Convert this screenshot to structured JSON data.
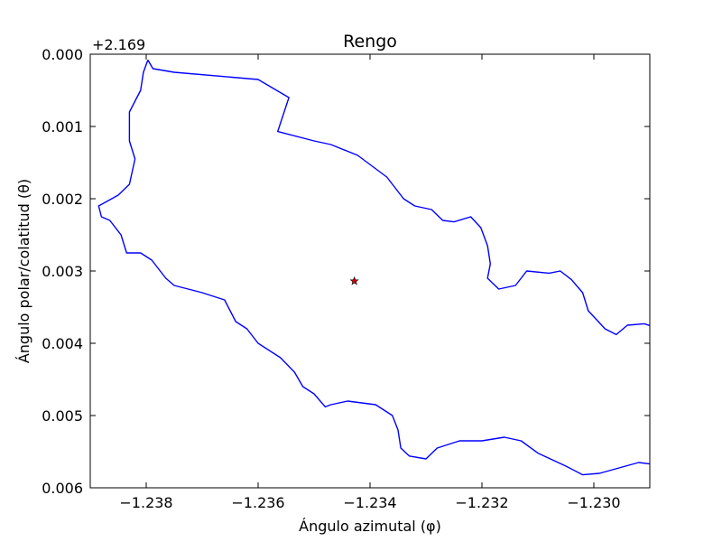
{
  "chart_data": {
    "type": "line",
    "title": "Rengo",
    "xlabel": "Ángulo azimutal (φ)",
    "ylabel": "Ángulo polar/colatitud (θ)",
    "y_offset_label": "+2.169",
    "xlim": [
      -1.239,
      -1.229
    ],
    "ylim": [
      0.006,
      0.0
    ],
    "y_axis_inverted": true,
    "grid": false,
    "x_ticks": [
      -1.238,
      -1.236,
      -1.234,
      -1.232,
      -1.23
    ],
    "x_tick_labels": [
      "−1.238",
      "−1.236",
      "−1.234",
      "−1.232",
      "−1.230"
    ],
    "y_ticks": [
      0.0,
      0.001,
      0.002,
      0.003,
      0.004,
      0.005,
      0.006
    ],
    "y_tick_labels": [
      "0.000",
      "0.001",
      "0.002",
      "0.003",
      "0.004",
      "0.005",
      "0.006"
    ],
    "series": [
      {
        "kind": "boundary",
        "color": "#0000ff",
        "points": [
          [
            -1.23797,
            8e-05
          ],
          [
            -1.23788,
            0.0002
          ],
          [
            -1.2375,
            0.00025
          ],
          [
            -1.236,
            0.00035
          ],
          [
            -1.23545,
            0.0006
          ],
          [
            -1.23565,
            0.00107
          ],
          [
            -1.235,
            0.0012
          ],
          [
            -1.2347,
            0.00125
          ],
          [
            -1.23422,
            0.0014
          ],
          [
            -1.2337,
            0.0017
          ],
          [
            -1.2334,
            0.002
          ],
          [
            -1.2332,
            0.0021
          ],
          [
            -1.2329,
            0.00215
          ],
          [
            -1.2327,
            0.0023
          ],
          [
            -1.2325,
            0.00232
          ],
          [
            -1.2322,
            0.00225
          ],
          [
            -1.23202,
            0.0024
          ],
          [
            -1.2319,
            0.00265
          ],
          [
            -1.23185,
            0.0029
          ],
          [
            -1.2319,
            0.0031
          ],
          [
            -1.2317,
            0.00325
          ],
          [
            -1.2314,
            0.0032
          ],
          [
            -1.2312,
            0.003
          ],
          [
            -1.2308,
            0.00303
          ],
          [
            -1.2306,
            0.003
          ],
          [
            -1.2304,
            0.00312
          ],
          [
            -1.2302,
            0.0033
          ],
          [
            -1.2301,
            0.00355
          ],
          [
            -1.2298,
            0.0038
          ],
          [
            -1.2296,
            0.00388
          ],
          [
            -1.2294,
            0.00375
          ],
          [
            -1.2291,
            0.00373
          ],
          [
            -1.2289,
            0.00378
          ],
          [
            -1.2288,
            0.0038
          ],
          [
            -1.2286,
            0.0038
          ],
          [
            -1.2285,
            0.00395
          ],
          [
            -1.2286,
            0.0043
          ],
          [
            -1.2286,
            0.0047
          ],
          [
            -1.2285,
            0.0051
          ],
          [
            -1.2283,
            0.00512
          ],
          [
            -1.2283,
            0.0055
          ],
          [
            -1.2284,
            0.0057
          ],
          [
            -1.2288,
            0.0058
          ],
          [
            -1.2289,
            0.00568
          ],
          [
            -1.2292,
            0.00565
          ],
          [
            -1.2299,
            0.0058
          ],
          [
            -1.2302,
            0.00582
          ],
          [
            -1.2305,
            0.0057
          ],
          [
            -1.231,
            0.00552
          ],
          [
            -1.2313,
            0.00535
          ],
          [
            -1.2316,
            0.0053
          ],
          [
            -1.232,
            0.00535
          ],
          [
            -1.2324,
            0.00535
          ],
          [
            -1.2328,
            0.00545
          ],
          [
            -1.233,
            0.0056
          ],
          [
            -1.2333,
            0.00556
          ],
          [
            -1.23345,
            0.00545
          ],
          [
            -1.2335,
            0.0052
          ],
          [
            -1.2336,
            0.005
          ],
          [
            -1.2339,
            0.00485
          ],
          [
            -1.2344,
            0.0048
          ],
          [
            -1.2347,
            0.00485
          ],
          [
            -1.2348,
            0.00488
          ],
          [
            -1.235,
            0.0047
          ],
          [
            -1.2352,
            0.0046
          ],
          [
            -1.23535,
            0.0044
          ],
          [
            -1.2356,
            0.0042
          ],
          [
            -1.236,
            0.004
          ],
          [
            -1.2362,
            0.0038
          ],
          [
            -1.2364,
            0.0037
          ],
          [
            -1.2366,
            0.0034
          ],
          [
            -1.237,
            0.0033
          ],
          [
            -1.2375,
            0.0032
          ],
          [
            -1.23765,
            0.0031
          ],
          [
            -1.23775,
            0.003
          ],
          [
            -1.2379,
            0.00285
          ],
          [
            -1.2381,
            0.00275
          ],
          [
            -1.23835,
            0.00275
          ],
          [
            -1.23845,
            0.0025
          ],
          [
            -1.23865,
            0.0023
          ],
          [
            -1.2388,
            0.00225
          ],
          [
            -1.23885,
            0.0021
          ],
          [
            -1.2385,
            0.00195
          ],
          [
            -1.2383,
            0.0018
          ],
          [
            -1.2382,
            0.00145
          ],
          [
            -1.2383,
            0.0012
          ],
          [
            -1.2383,
            0.0008
          ],
          [
            -1.2381,
            0.0005
          ],
          [
            -1.23805,
            0.00025
          ],
          [
            -1.23797,
            8e-05
          ]
        ]
      },
      {
        "kind": "marker",
        "symbol": "star",
        "color": "#cc0000",
        "points": [
          [
            -1.23428,
            0.00314
          ]
        ]
      }
    ]
  }
}
